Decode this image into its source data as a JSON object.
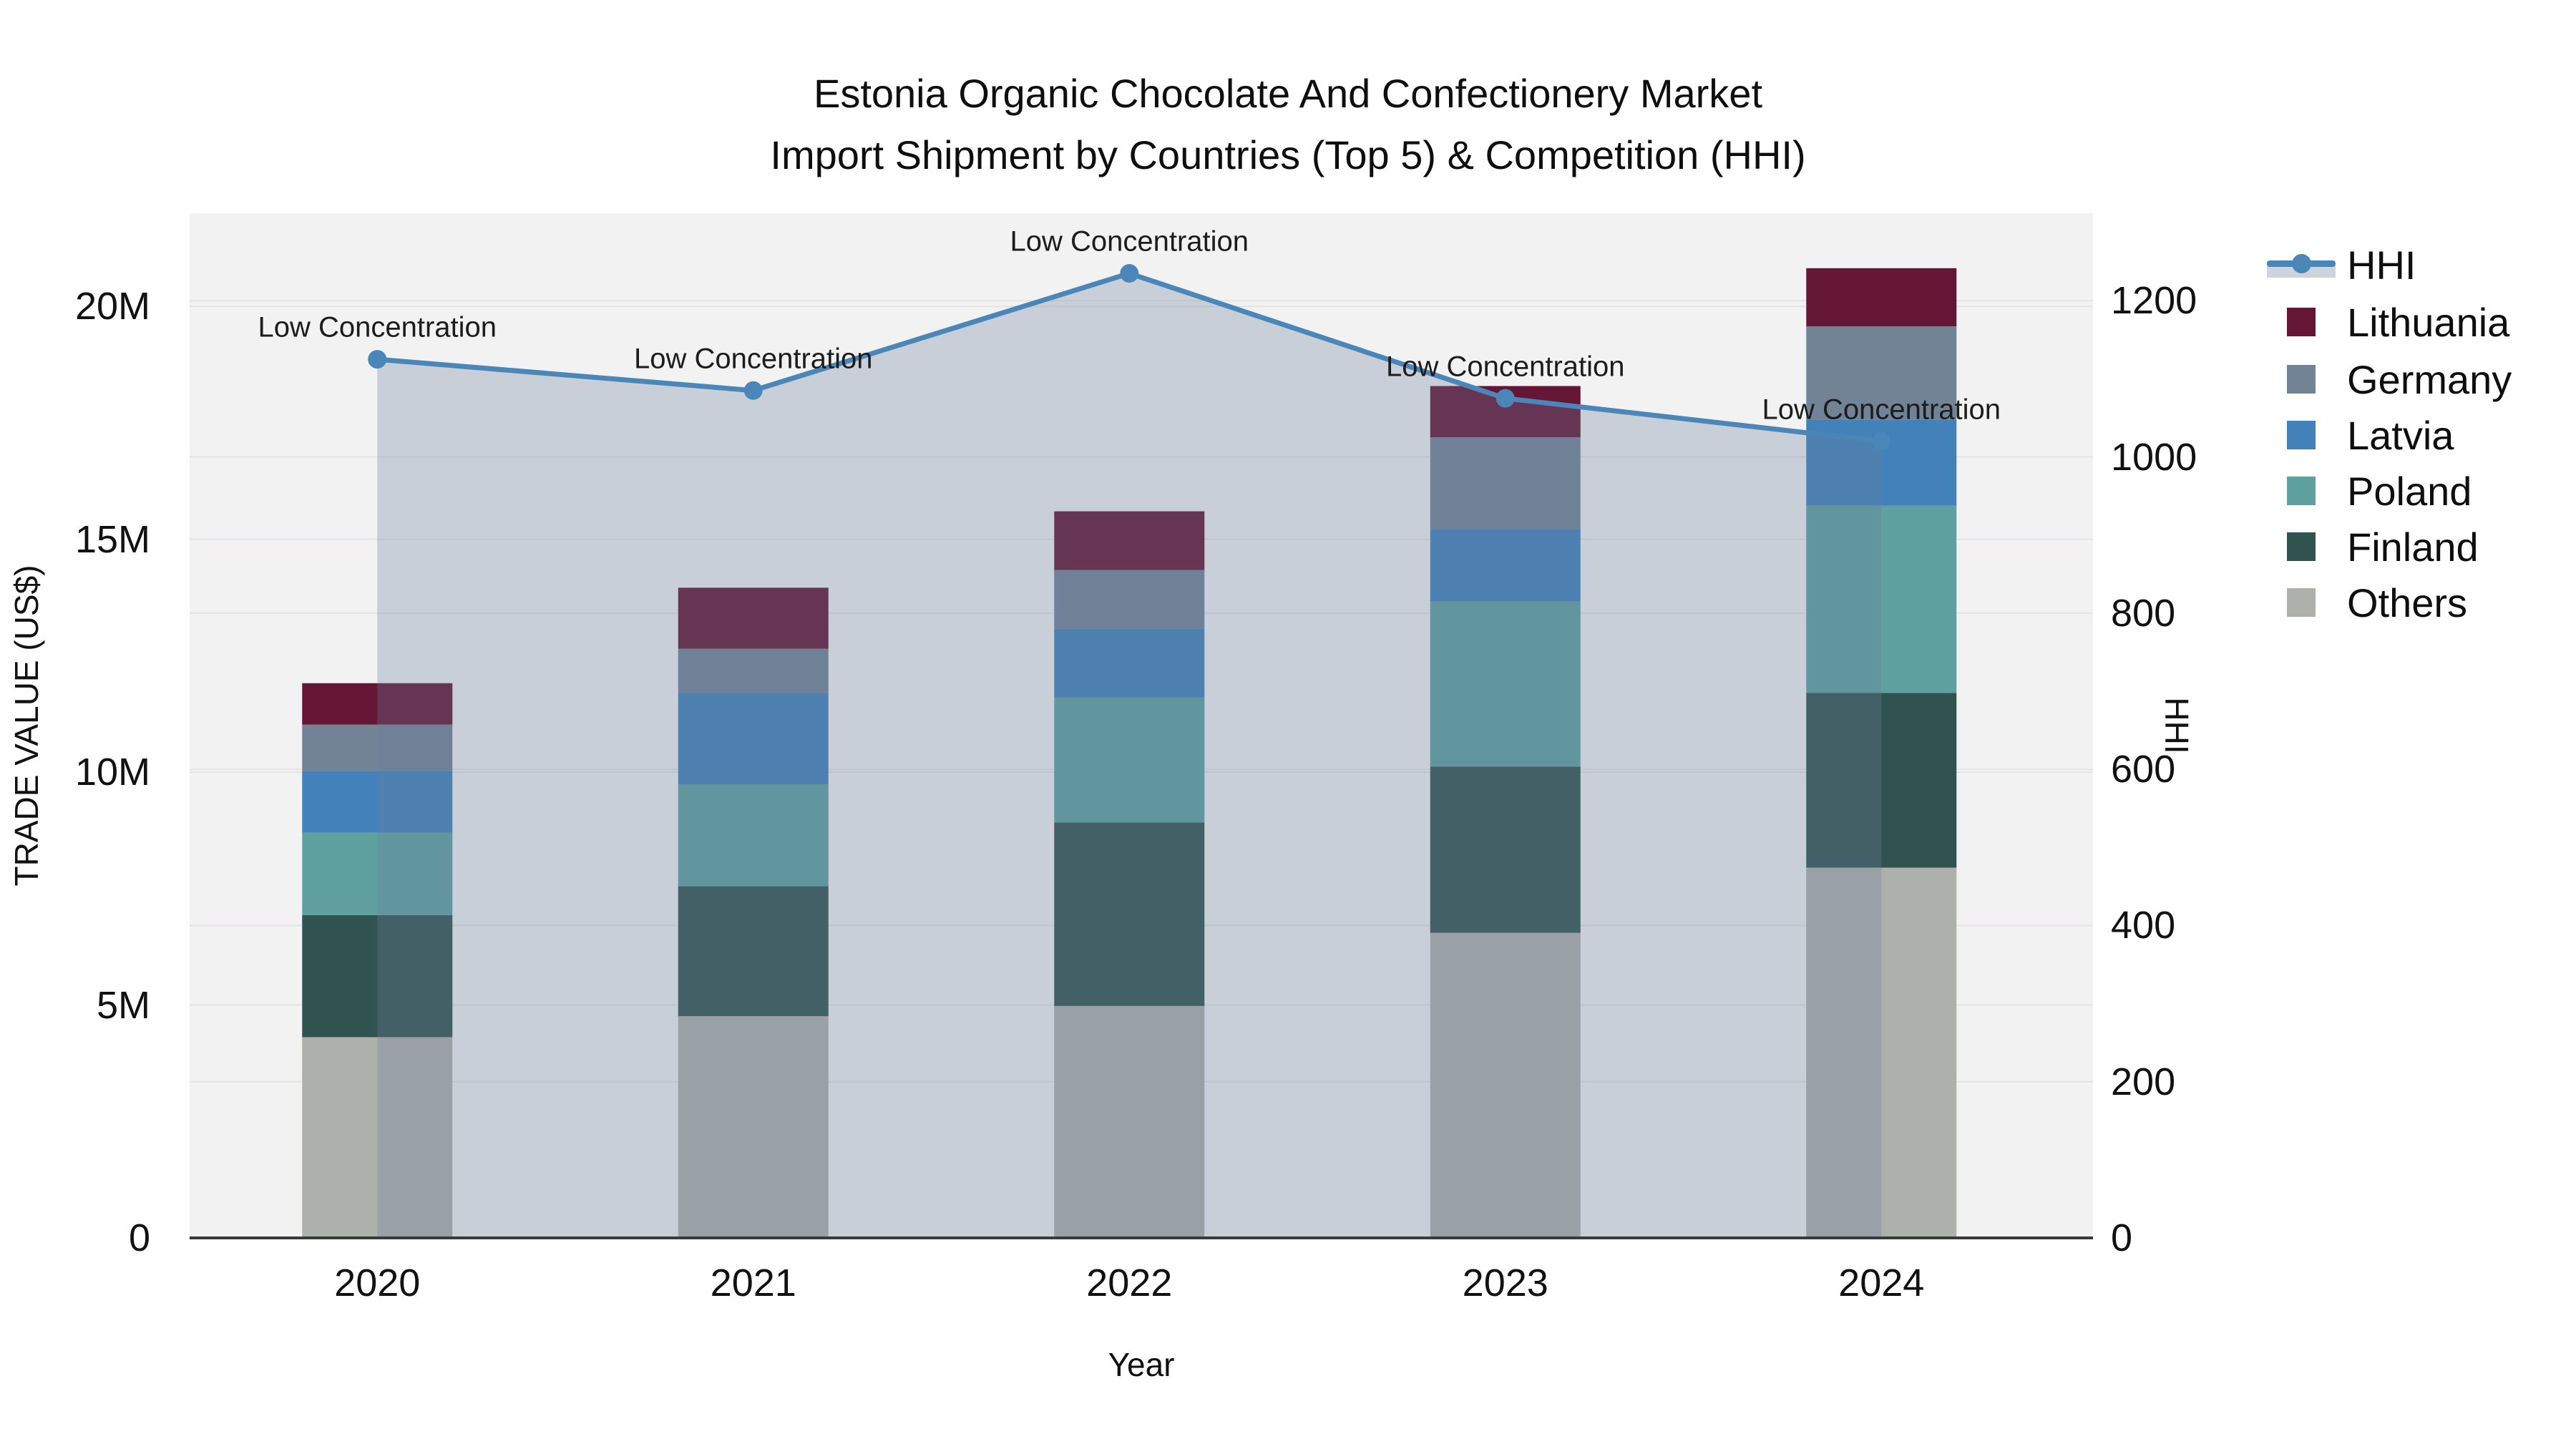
{
  "chart": {
    "title_line1": "Estonia Organic Chocolate And Confectionery Market",
    "title_line2": "Import Shipment by Countries (Top 5) & Competition (HHI)",
    "x_axis_title": "Year",
    "left_axis_title": "TRADE VALUE (US$)",
    "right_axis_title": "HHI"
  },
  "chart_data": {
    "type": "bar",
    "subtype": "stacked-bar-with-line-overlay",
    "title": "Estonia Organic Chocolate And Confectionery Market Import Shipment by Countries (Top 5) & Competition (HHI)",
    "categories": [
      "2020",
      "2021",
      "2022",
      "2023",
      "2024"
    ],
    "value_unit": "million US$",
    "stack_order_bottom_to_top": [
      "Others",
      "Finland",
      "Poland",
      "Latvia",
      "Germany",
      "Lithuania"
    ],
    "series": [
      {
        "name": "Others",
        "color": "#aeb0ac",
        "values": [
          4.31,
          4.76,
          4.98,
          6.55,
          7.95
        ]
      },
      {
        "name": "Finland",
        "color": "#315350",
        "values": [
          2.62,
          2.79,
          3.94,
          3.57,
          3.75
        ]
      },
      {
        "name": "Poland",
        "color": "#5fa1a1",
        "values": [
          1.77,
          2.19,
          2.68,
          3.54,
          4.02
        ]
      },
      {
        "name": "Latvia",
        "color": "#4381ba",
        "values": [
          1.33,
          1.96,
          1.48,
          1.55,
          1.85
        ]
      },
      {
        "name": "Germany",
        "color": "#728396",
        "values": [
          0.99,
          0.95,
          1.26,
          1.98,
          2.0
        ]
      },
      {
        "name": "Lithuania",
        "color": "#651635",
        "values": [
          0.89,
          1.31,
          1.26,
          1.1,
          1.25
        ]
      }
    ],
    "hhi_line": {
      "name": "HHI",
      "values": [
        1125,
        1085,
        1235,
        1075,
        1020
      ],
      "annotation_text": "Low Concentration",
      "color": "#4a86b8",
      "area_fill_color": "rgba(106,127,157,0.30)",
      "marker": "circle"
    },
    "left_axis": {
      "tick_labels": [
        "0",
        "5M",
        "10M",
        "15M",
        "20M"
      ],
      "tick_values": [
        0,
        5,
        10,
        15,
        20
      ],
      "range": [
        0,
        22
      ]
    },
    "right_axis": {
      "tick_labels": [
        "0",
        "200",
        "400",
        "600",
        "800",
        "1000",
        "1200"
      ],
      "tick_values": [
        0,
        200,
        400,
        600,
        800,
        1000,
        1200
      ],
      "range": [
        0,
        1312
      ]
    },
    "grid": true,
    "legend_position": "right"
  },
  "legend": {
    "items": [
      {
        "label": "HHI",
        "type": "line",
        "color": "#4a86b8"
      },
      {
        "label": "Lithuania",
        "type": "swatch",
        "color": "#651635"
      },
      {
        "label": "Germany",
        "type": "swatch",
        "color": "#728396"
      },
      {
        "label": "Latvia",
        "type": "swatch",
        "color": "#4381ba"
      },
      {
        "label": "Poland",
        "type": "swatch",
        "color": "#5fa1a1"
      },
      {
        "label": "Finland",
        "type": "swatch",
        "color": "#315350"
      },
      {
        "label": "Others",
        "type": "swatch",
        "color": "#aeb0ac"
      }
    ]
  },
  "colors": {
    "plot_background": "#f2f2f2",
    "grid_line": "#e3e4e6",
    "axis_line": "#3a3a3a",
    "text": "#111111"
  }
}
